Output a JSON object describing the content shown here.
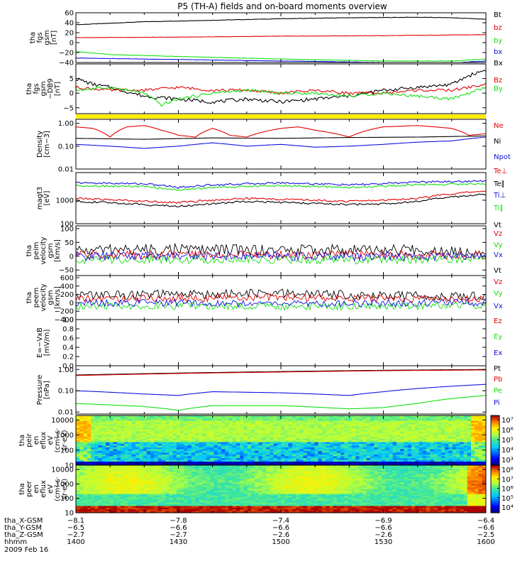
{
  "title": "P5 (TH-A) fields and on-board moments overview",
  "date_label": "2009 Feb 16",
  "colors": {
    "black": "#000000",
    "red": "#e00000",
    "green": "#10e010",
    "blue": "#1010e0",
    "yellow": "#ffee00"
  },
  "chart_data": [
    {
      "type": "line",
      "ylabel_lines": [
        "tha",
        "fgs",
        "gsm",
        "[nT]"
      ],
      "yticks": [
        "60",
        "40",
        "20",
        "0",
        "−20",
        "−40"
      ],
      "ylim": [
        -40,
        60
      ],
      "log": false,
      "legend": [
        {
          "label": "Bt",
          "color": "black"
        },
        {
          "label": "bz",
          "color": "red"
        },
        {
          "label": "by",
          "color": "green"
        },
        {
          "label": "bx",
          "color": "blue"
        }
      ],
      "series": [
        {
          "name": "Bt",
          "color": "black",
          "x": [
            1400,
            1420,
            1440,
            1500,
            1520,
            1540,
            1550,
            1600
          ],
          "y": [
            36,
            42,
            45,
            48,
            50,
            51,
            50,
            47
          ]
        },
        {
          "name": "bz",
          "color": "red",
          "x": [
            1400,
            1430,
            1500,
            1530,
            1600
          ],
          "y": [
            10,
            11,
            13,
            14,
            16
          ]
        },
        {
          "name": "by",
          "color": "green",
          "x": [
            1400,
            1410,
            1430,
            1500,
            1530,
            1550,
            1600
          ],
          "y": [
            -18,
            -24,
            -28,
            -33,
            -37,
            -37,
            -33
          ]
        },
        {
          "name": "bx",
          "color": "blue",
          "x": [
            1400,
            1430,
            1500,
            1530,
            1550,
            1600
          ],
          "y": [
            -31,
            -34,
            -37,
            -40,
            -41,
            -37
          ]
        }
      ]
    },
    {
      "type": "line",
      "ylabel_lines": [
        "tha",
        "fgs",
        "gsm",
        "−DB9",
        "[nT]"
      ],
      "yticks": [
        "5",
        "0",
        "−5"
      ],
      "ylim": [
        -7,
        10
      ],
      "log": false,
      "legend": [
        {
          "label": "Bx",
          "color": "black"
        },
        {
          "label": "Bz",
          "color": "red"
        },
        {
          "label": "By",
          "color": "green"
        }
      ],
      "series": [
        {
          "name": "Bx",
          "color": "black",
          "x": [
            1400,
            1405,
            1410,
            1420,
            1430,
            1440,
            1450,
            1500,
            1510,
            1520,
            1530,
            1540,
            1550,
            1555,
            1600
          ],
          "y": [
            5,
            3,
            2,
            -1,
            -2,
            -3,
            -2,
            -3,
            -2,
            -1,
            1,
            2,
            3,
            6,
            8
          ]
        },
        {
          "name": "Bz",
          "color": "red",
          "x": [
            1400,
            1410,
            1420,
            1430,
            1440,
            1450,
            1500,
            1510,
            1520,
            1530,
            1540,
            1550,
            1600
          ],
          "y": [
            2,
            1,
            1,
            2,
            1,
            1,
            0,
            1,
            0,
            0,
            1,
            1,
            3
          ]
        },
        {
          "name": "By",
          "color": "green",
          "x": [
            1400,
            1410,
            1420,
            1425,
            1430,
            1440,
            1450,
            1500,
            1510,
            1520,
            1530,
            1540,
            1550,
            1600
          ],
          "y": [
            1,
            2,
            0,
            -4,
            -2,
            0,
            1,
            0,
            0,
            -1,
            0,
            -1,
            -2,
            2
          ]
        }
      ]
    },
    {
      "type": "line",
      "ylabel_lines": [
        "Density",
        "[cm−3]"
      ],
      "yticks": [
        "1.00",
        "0.10",
        "0.01"
      ],
      "ylim": [
        0.01,
        1.5
      ],
      "log": true,
      "legend": [
        {
          "label": "Ne",
          "color": "red"
        },
        {
          "label": "Ni",
          "color": "black"
        },
        {
          "label": "Npot",
          "color": "blue"
        }
      ],
      "series": [
        {
          "name": "Ne",
          "color": "red",
          "x": [
            1400,
            1405,
            1410,
            1415,
            1420,
            1425,
            1430,
            1435,
            1440,
            1445,
            1450,
            1500,
            1505,
            1510,
            1520,
            1530,
            1540,
            1550,
            1555,
            1600
          ],
          "y": [
            0.7,
            0.6,
            0.25,
            0.7,
            0.8,
            0.5,
            0.3,
            0.25,
            0.6,
            0.3,
            0.25,
            0.6,
            0.7,
            0.5,
            0.25,
            0.7,
            0.8,
            0.6,
            0.3,
            0.35
          ]
        },
        {
          "name": "Ni",
          "color": "black",
          "x": [
            1400,
            1420,
            1440,
            1500,
            1520,
            1540,
            1600
          ],
          "y": [
            0.22,
            0.2,
            0.23,
            0.22,
            0.24,
            0.25,
            0.28
          ]
        },
        {
          "name": "Npot",
          "color": "blue",
          "x": [
            1400,
            1410,
            1420,
            1430,
            1440,
            1450,
            1500,
            1510,
            1520,
            1530,
            1540,
            1550,
            1600
          ],
          "y": [
            0.12,
            0.1,
            0.08,
            0.1,
            0.14,
            0.1,
            0.12,
            0.09,
            0.1,
            0.12,
            0.15,
            0.17,
            0.25
          ]
        }
      ]
    },
    {
      "type": "line",
      "ylabel_lines": [
        "magt3",
        "[eV]"
      ],
      "yticks": [
        "1000",
        "100"
      ],
      "ylim": [
        100,
        15000
      ],
      "log": true,
      "legend": [
        {
          "label": "Te⊥",
          "color": "red"
        },
        {
          "label": "Te∥",
          "color": "black"
        },
        {
          "label": "Ti⊥",
          "color": "blue"
        },
        {
          "label": "Ti∥",
          "color": "green"
        }
      ],
      "series": [
        {
          "name": "Ti⊥",
          "color": "blue",
          "x": [
            1400,
            1420,
            1430,
            1440,
            1500,
            1520,
            1530,
            1540,
            1600
          ],
          "y": [
            5500,
            5000,
            3500,
            4500,
            5500,
            4500,
            5000,
            6000,
            6500
          ]
        },
        {
          "name": "Ti∥",
          "color": "green",
          "x": [
            1400,
            1420,
            1430,
            1440,
            1500,
            1520,
            1530,
            1540,
            1600
          ],
          "y": [
            4200,
            3800,
            2700,
            3500,
            4200,
            3500,
            3900,
            4600,
            5000
          ]
        },
        {
          "name": "Te⊥",
          "color": "red",
          "x": [
            1400,
            1420,
            1430,
            1440,
            1450,
            1500,
            1520,
            1530,
            1540,
            1600
          ],
          "y": [
            1200,
            900,
            800,
            1000,
            1200,
            1100,
            900,
            1000,
            1200,
            2500
          ]
        },
        {
          "name": "Te∥",
          "color": "black",
          "x": [
            1400,
            1420,
            1430,
            1440,
            1450,
            1500,
            1520,
            1530,
            1540,
            1600
          ],
          "y": [
            900,
            650,
            550,
            700,
            900,
            800,
            650,
            700,
            900,
            1800
          ]
        }
      ]
    },
    {
      "type": "line",
      "ylabel_lines": [
        "tha",
        "peim",
        "velocity",
        "gsm",
        "[km/s]"
      ],
      "yticks": [
        "100",
        "50",
        "0",
        "−50"
      ],
      "ylim": [
        -70,
        110
      ],
      "log": false,
      "legend": [
        {
          "label": "Vt",
          "color": "black"
        },
        {
          "label": "Vz",
          "color": "red"
        },
        {
          "label": "Vy",
          "color": "green"
        },
        {
          "label": "Vx",
          "color": "blue"
        }
      ],
      "series": [
        {
          "name": "Vt",
          "color": "black",
          "x": [
            1400,
            1430,
            1500,
            1530,
            1600
          ],
          "y": [
            22,
            25,
            22,
            22,
            20
          ]
        },
        {
          "name": "Vz",
          "color": "red",
          "x": [
            1400,
            1430,
            1500,
            1530,
            1600
          ],
          "y": [
            5,
            6,
            5,
            5,
            5
          ]
        },
        {
          "name": "Vy",
          "color": "green",
          "x": [
            1400,
            1430,
            1500,
            1530,
            1600
          ],
          "y": [
            -12,
            -10,
            -12,
            -12,
            -10
          ]
        },
        {
          "name": "Vx",
          "color": "blue",
          "x": [
            1400,
            1430,
            1500,
            1530,
            1600
          ],
          "y": [
            0,
            2,
            0,
            0,
            0
          ]
        }
      ]
    },
    {
      "type": "line",
      "ylabel_lines": [
        "tha",
        "peem",
        "velocity",
        "gsm",
        "[km/s]"
      ],
      "yticks": [
        "600",
        "400",
        "200",
        "0",
        "−200",
        "−400"
      ],
      "ylim": [
        -400,
        650
      ],
      "log": false,
      "legend": [
        {
          "label": "Vt",
          "color": "black"
        },
        {
          "label": "Vz",
          "color": "red"
        },
        {
          "label": "Vy",
          "color": "green"
        },
        {
          "label": "Vx",
          "color": "blue"
        }
      ],
      "series": [
        {
          "name": "Vt",
          "color": "black",
          "x": [
            1400,
            1430,
            1500,
            1530,
            1600
          ],
          "y": [
            180,
            200,
            220,
            180,
            150
          ]
        },
        {
          "name": "Vz",
          "color": "red",
          "x": [
            1400,
            1430,
            1500,
            1530,
            1600
          ],
          "y": [
            90,
            110,
            130,
            100,
            80
          ]
        },
        {
          "name": "Vy",
          "color": "green",
          "x": [
            1400,
            1430,
            1500,
            1530,
            1600
          ],
          "y": [
            -80,
            -70,
            -90,
            -80,
            -60
          ]
        },
        {
          "name": "Vx",
          "color": "blue",
          "x": [
            1400,
            1430,
            1500,
            1530,
            1600
          ],
          "y": [
            -10,
            0,
            -20,
            -10,
            0
          ]
        }
      ]
    },
    {
      "type": "line",
      "ylabel_lines": [
        "E=−VxB",
        "[mV/m]"
      ],
      "yticks": [
        "1.0",
        "0.8",
        "0.6",
        "0.4",
        "0.2",
        "0.0"
      ],
      "ylim": [
        0,
        1
      ],
      "log": false,
      "legend": [
        {
          "label": "Ez",
          "color": "red"
        },
        {
          "label": "Ey",
          "color": "green"
        },
        {
          "label": "Ex",
          "color": "blue"
        }
      ],
      "series": []
    },
    {
      "type": "line",
      "ylabel_lines": [
        "Pressure",
        "[nPa]"
      ],
      "yticks": [
        "1.00",
        "0.10",
        "0.01"
      ],
      "ylim": [
        0.008,
        1.5
      ],
      "log": true,
      "legend": [
        {
          "label": "Pt",
          "color": "black"
        },
        {
          "label": "Pb",
          "color": "red"
        },
        {
          "label": "Pe",
          "color": "green"
        },
        {
          "label": "Pi",
          "color": "blue"
        }
      ],
      "series": [
        {
          "name": "Pt",
          "color": "black",
          "x": [
            1400,
            1430,
            1500,
            1530,
            1600
          ],
          "y": [
            0.55,
            0.68,
            0.8,
            0.92,
            1.0
          ]
        },
        {
          "name": "Pb",
          "color": "red",
          "x": [
            1400,
            1430,
            1500,
            1530,
            1600
          ],
          "y": [
            0.52,
            0.65,
            0.76,
            0.88,
            0.95
          ]
        },
        {
          "name": "Pi",
          "color": "blue",
          "x": [
            1400,
            1420,
            1430,
            1440,
            1500,
            1520,
            1530,
            1600
          ],
          "y": [
            0.1,
            0.07,
            0.06,
            0.09,
            0.08,
            0.06,
            0.09,
            0.2
          ]
        },
        {
          "name": "Pe",
          "color": "green",
          "x": [
            1400,
            1420,
            1430,
            1440,
            1500,
            1520,
            1530,
            1540,
            1600
          ],
          "y": [
            0.025,
            0.018,
            0.012,
            0.02,
            0.02,
            0.014,
            0.016,
            0.025,
            0.06
          ]
        }
      ]
    },
    {
      "type": "heatmap",
      "ylabel_lines": [
        "tha",
        "peir",
        "en",
        "eflux",
        "eV",
        "(cm²·s·",
        "sr·eV)"
      ],
      "yticks": [
        "10000",
        "1000",
        "100",
        "10"
      ],
      "ylim": [
        10,
        20000
      ],
      "log": true,
      "colorbar_ticks": [
        "10⁷",
        "10⁶",
        "10⁵",
        "10⁴",
        "10³"
      ]
    },
    {
      "type": "heatmap",
      "ylabel_lines": [
        "tha",
        "peer",
        "en",
        "eflux",
        "eV",
        "(cm²·s·",
        "sr·eV)"
      ],
      "yticks": [
        "10000",
        "1000",
        "100",
        "10"
      ],
      "ylim": [
        10,
        20000
      ],
      "log": true,
      "colorbar_ticks": [
        "10⁸",
        "10⁷",
        "10⁶",
        "10⁵",
        "10⁴"
      ]
    }
  ],
  "x_axis": {
    "row_labels": [
      "tha_X-GSM",
      "tha_Y-GSM",
      "tha_Z-GSM",
      "hhmm"
    ],
    "ticks": [
      {
        "x": 1400,
        "values": [
          "−8.1",
          "−6.5",
          "−2.7",
          "1400"
        ]
      },
      {
        "x": 1430,
        "values": [
          "−7.8",
          "−6.6",
          "−2.7",
          "1430"
        ]
      },
      {
        "x": 1500,
        "values": [
          "−7.4",
          "−6.6",
          "−2.6",
          "1500"
        ]
      },
      {
        "x": 1530,
        "values": [
          "−6.9",
          "−6.6",
          "−2.6",
          "1530"
        ]
      },
      {
        "x": 1600,
        "values": [
          "−6.4",
          "−6.6",
          "−2.5",
          "1600"
        ]
      }
    ]
  }
}
